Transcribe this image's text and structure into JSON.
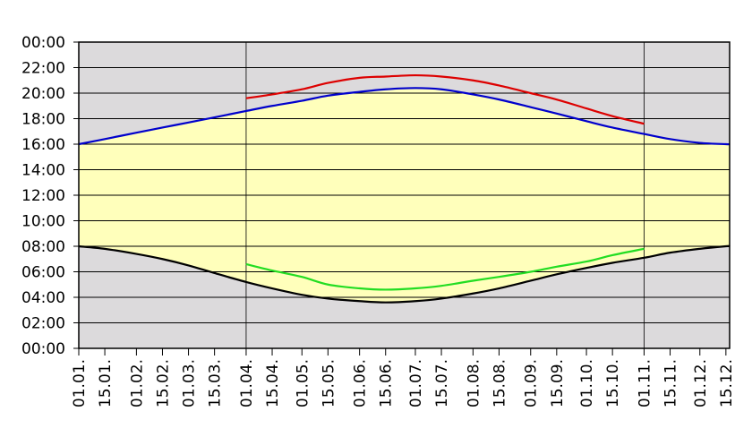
{
  "chart_data": {
    "type": "line",
    "title": "",
    "xlabel": "",
    "ylabel": "",
    "xlim": [
      0,
      350
    ],
    "ylim": [
      0,
      24
    ],
    "grid": true,
    "x_ticks": [
      {
        "label": "01.01.",
        "day": 0
      },
      {
        "label": "15.01.",
        "day": 14
      },
      {
        "label": "01.02.",
        "day": 31
      },
      {
        "label": "15.02.",
        "day": 45
      },
      {
        "label": "01.03.",
        "day": 59
      },
      {
        "label": "15.03.",
        "day": 73
      },
      {
        "label": "01.04.",
        "day": 90
      },
      {
        "label": "15.04.",
        "day": 104
      },
      {
        "label": "01.05.",
        "day": 120
      },
      {
        "label": "15.05.",
        "day": 134
      },
      {
        "label": "01.06.",
        "day": 151
      },
      {
        "label": "15.06.",
        "day": 165
      },
      {
        "label": "01.07.",
        "day": 181
      },
      {
        "label": "15.07.",
        "day": 195
      },
      {
        "label": "01.08.",
        "day": 212
      },
      {
        "label": "15.08.",
        "day": 226
      },
      {
        "label": "01.09.",
        "day": 243
      },
      {
        "label": "15.09.",
        "day": 257
      },
      {
        "label": "01.10.",
        "day": 273
      },
      {
        "label": "15.10.",
        "day": 287
      },
      {
        "label": "01.11.",
        "day": 304
      },
      {
        "label": "15.11.",
        "day": 318
      },
      {
        "label": "01.12.",
        "day": 334
      },
      {
        "label": "15.12.",
        "day": 348
      }
    ],
    "y_ticks": [
      {
        "label": "00:00",
        "value": 0
      },
      {
        "label": "02:00",
        "value": 2
      },
      {
        "label": "04:00",
        "value": 4
      },
      {
        "label": "06:00",
        "value": 6
      },
      {
        "label": "08:00",
        "value": 8
      },
      {
        "label": "10:00",
        "value": 10
      },
      {
        "label": "12:00",
        "value": 12
      },
      {
        "label": "14:00",
        "value": 14
      },
      {
        "label": "16:00",
        "value": 16
      },
      {
        "label": "18:00",
        "value": 18
      },
      {
        "label": "20:00",
        "value": 20
      },
      {
        "label": "22:00",
        "value": 22
      },
      {
        "label": "00:00",
        "value": 24
      }
    ],
    "marker_lines": [
      {
        "label": "01.04.",
        "day": 90
      },
      {
        "label": "01.11.",
        "day": 304
      }
    ],
    "series": [
      {
        "color": "#0000cc",
        "x": [
          0,
          14,
          31,
          45,
          59,
          73,
          90,
          104,
          120,
          134,
          151,
          165,
          181,
          195,
          212,
          226,
          243,
          257,
          273,
          287,
          304,
          318,
          334,
          348
        ],
        "y": [
          16.0,
          16.4,
          16.9,
          17.3,
          17.7,
          18.1,
          18.6,
          19.0,
          19.4,
          19.8,
          20.1,
          20.3,
          20.4,
          20.3,
          19.9,
          19.5,
          18.9,
          18.4,
          17.8,
          17.3,
          16.8,
          16.4,
          16.1,
          16.0
        ]
      },
      {
        "color": "#000000",
        "x": [
          0,
          14,
          31,
          45,
          59,
          73,
          90,
          104,
          120,
          134,
          151,
          165,
          181,
          195,
          212,
          226,
          243,
          257,
          273,
          287,
          304,
          318,
          334,
          348
        ],
        "y": [
          8.0,
          7.8,
          7.4,
          7.0,
          6.5,
          5.9,
          5.2,
          4.7,
          4.2,
          3.9,
          3.7,
          3.6,
          3.7,
          3.9,
          4.3,
          4.7,
          5.3,
          5.8,
          6.3,
          6.7,
          7.1,
          7.5,
          7.8,
          8.0
        ]
      },
      {
        "color": "#dd0000",
        "x": [
          90,
          104,
          120,
          134,
          151,
          165,
          181,
          195,
          212,
          226,
          243,
          257,
          273,
          287,
          304
        ],
        "y": [
          19.6,
          19.9,
          20.3,
          20.8,
          21.2,
          21.3,
          21.4,
          21.3,
          21.0,
          20.6,
          20.0,
          19.5,
          18.8,
          18.2,
          17.6
        ]
      },
      {
        "color": "#22dd22",
        "x": [
          90,
          104,
          120,
          134,
          151,
          165,
          181,
          195,
          212,
          226,
          243,
          257,
          273,
          287,
          304
        ],
        "y": [
          6.6,
          6.1,
          5.6,
          5.0,
          4.7,
          4.6,
          4.7,
          4.9,
          5.3,
          5.6,
          6.0,
          6.4,
          6.8,
          7.3,
          7.8
        ]
      }
    ],
    "fill": {
      "upper_series": 0,
      "lower_series": 1,
      "color": "#ffffbb"
    },
    "background_color": "#dcdadc",
    "grid_color": "#000000"
  }
}
